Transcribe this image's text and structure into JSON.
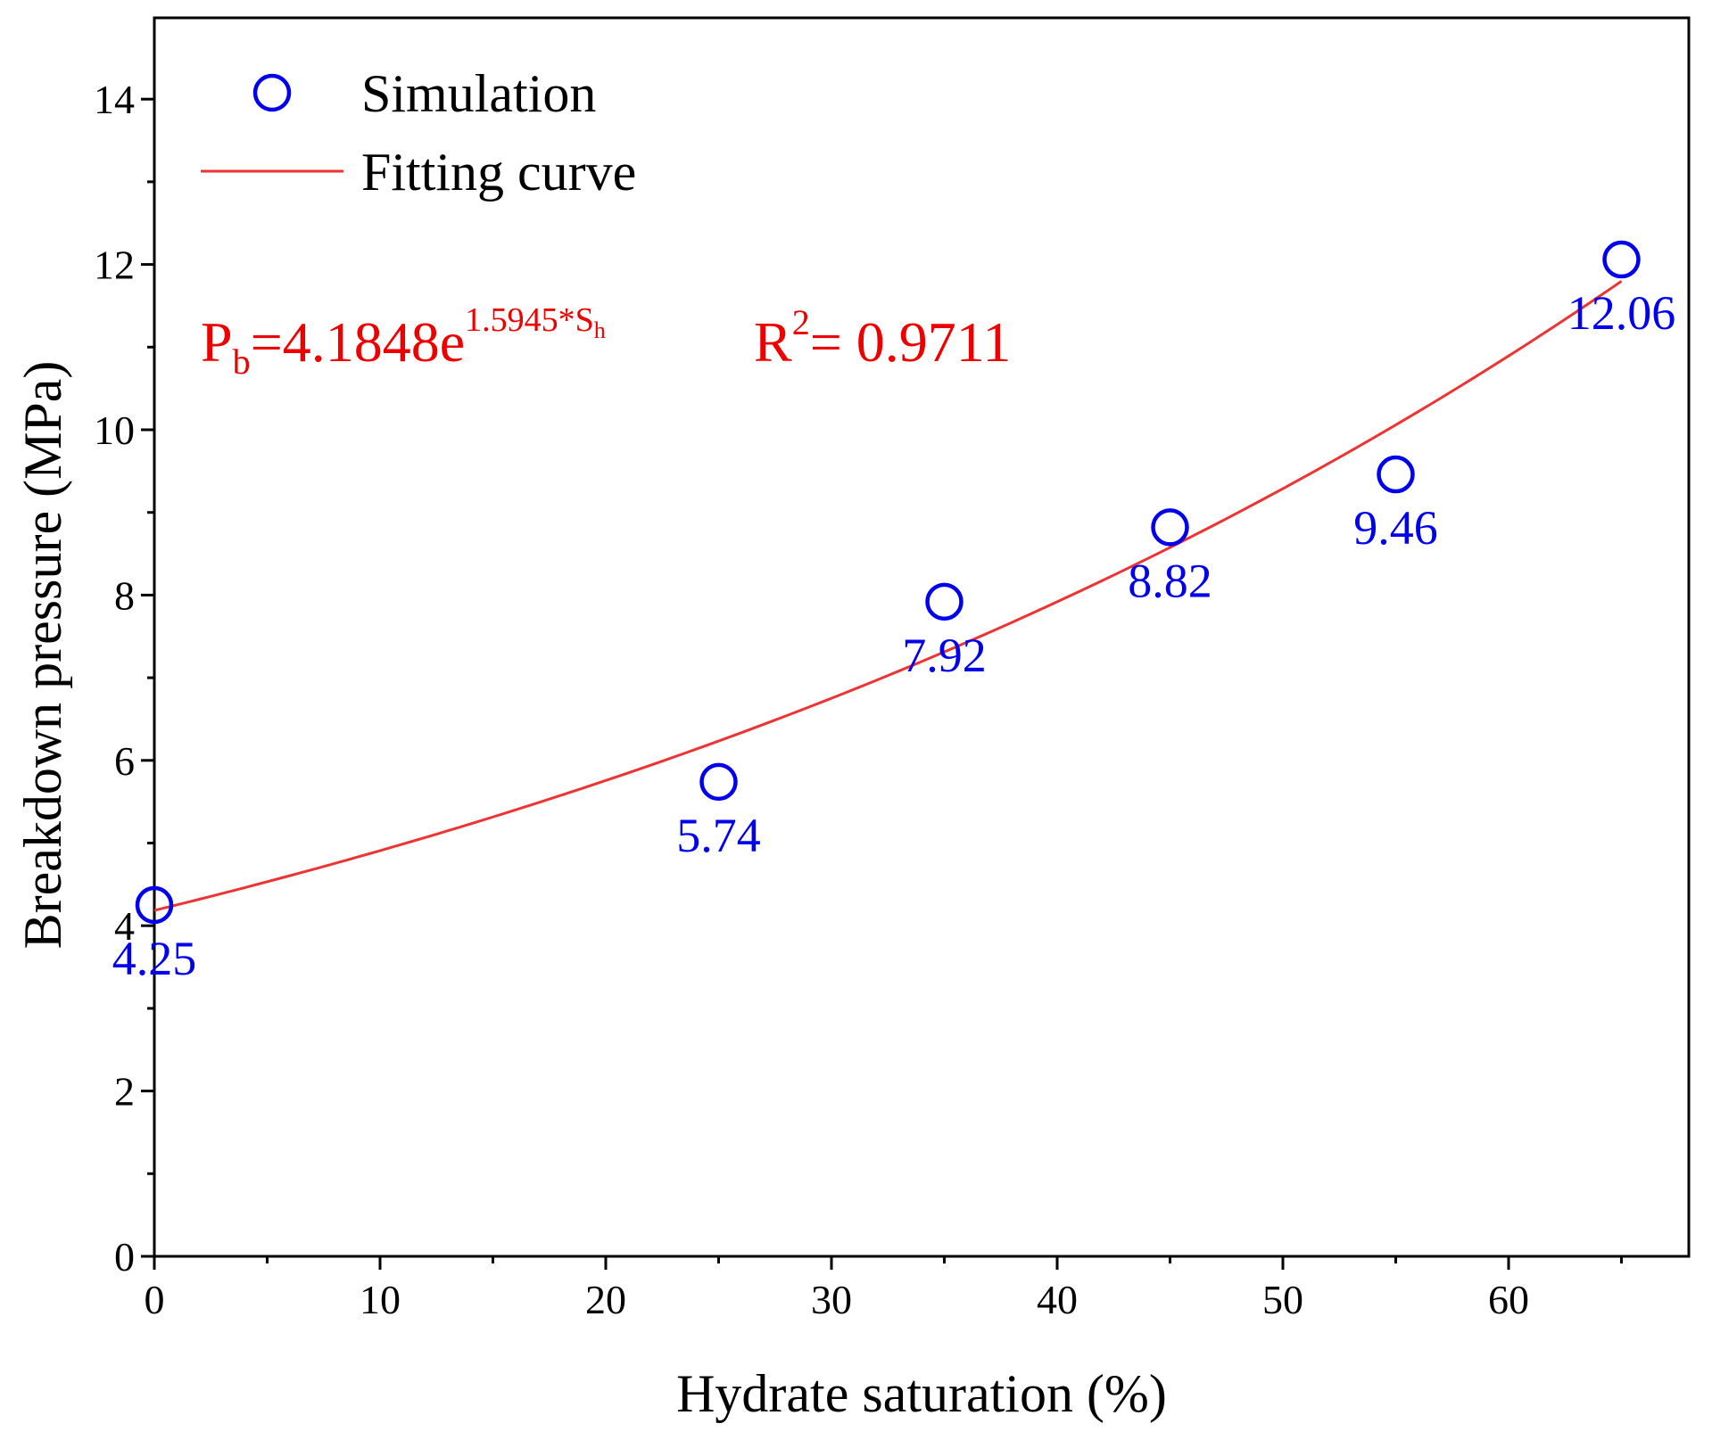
{
  "chart_data": {
    "type": "scatter",
    "xlabel": "Hydrate saturation (%)",
    "ylabel": "Breakdown pressure (MPa)",
    "xlim": [
      0,
      68
    ],
    "ylim": [
      0,
      15
    ],
    "x_ticks": [
      0,
      10,
      20,
      30,
      40,
      50,
      60
    ],
    "x_minor_ticks": [
      5,
      15,
      25,
      35,
      45,
      55,
      65
    ],
    "y_ticks": [
      0,
      2,
      4,
      6,
      8,
      10,
      12,
      14
    ],
    "y_minor_ticks": [
      1,
      3,
      5,
      7,
      9,
      11,
      13
    ],
    "x_tick_labels": [
      "0",
      "10",
      "20",
      "30",
      "40",
      "50",
      "60"
    ],
    "y_tick_labels": [
      "0",
      "2",
      "4",
      "6",
      "8",
      "10",
      "12",
      "14"
    ],
    "series": [
      {
        "name": "Simulation",
        "kind": "scatter",
        "marker": "open-circle",
        "color": "#0000ee",
        "x": [
          0,
          25,
          35,
          45,
          55,
          65
        ],
        "y": [
          4.25,
          5.74,
          7.92,
          8.82,
          9.46,
          12.06
        ],
        "labels": [
          "4.25",
          "5.74",
          "7.92",
          "8.82",
          "9.46",
          "12.06"
        ]
      },
      {
        "name": "Fitting curve",
        "kind": "line",
        "color": "#ee3333",
        "equation": {
          "a": 4.1848,
          "b": 1.5945,
          "x_range": [
            0,
            65
          ],
          "x_scale": 0.01
        }
      }
    ],
    "legend": {
      "position": "top-left",
      "entries": [
        "Simulation",
        "Fitting curve"
      ]
    },
    "annotation": {
      "color": "#ee0000",
      "eq_lhs": "P",
      "eq_lhs_sub": "b",
      "eq_rhs": "=4.1848e",
      "eq_sup": "1.5945*S",
      "eq_sup_sub": "h",
      "r2_label": "R",
      "r2_sup": "2",
      "r2_value": "= 0.9711"
    }
  }
}
